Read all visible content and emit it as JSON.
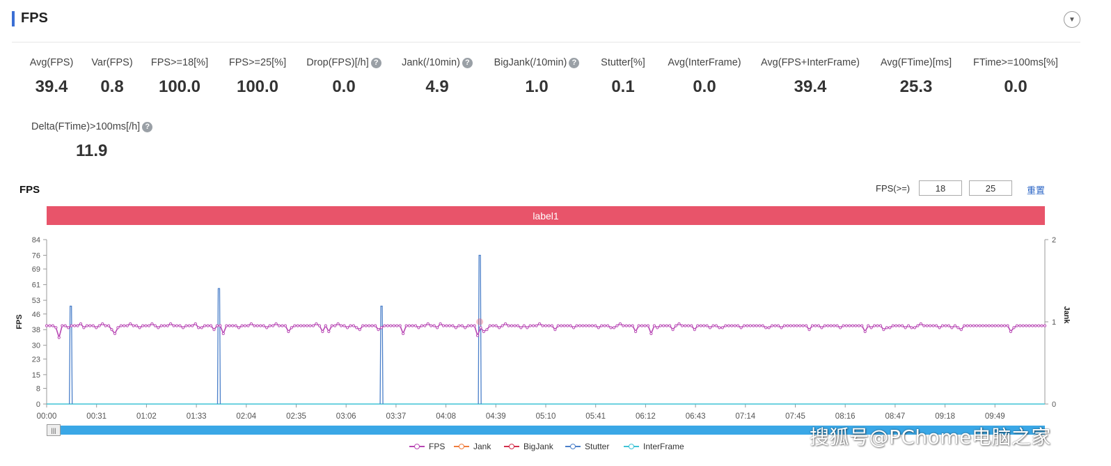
{
  "header": {
    "title": "FPS"
  },
  "metrics_row1": [
    {
      "label": "Avg(FPS)",
      "value": "39.4",
      "help": false
    },
    {
      "label": "Var(FPS)",
      "value": "0.8",
      "help": false
    },
    {
      "label": "FPS>=18[%]",
      "value": "100.0",
      "help": false
    },
    {
      "label": "FPS>=25[%]",
      "value": "100.0",
      "help": false
    },
    {
      "label": "Drop(FPS)[/h]",
      "value": "0.0",
      "help": true
    },
    {
      "label": "Jank(/10min)",
      "value": "4.9",
      "help": true
    },
    {
      "label": "BigJank(/10min)",
      "value": "1.0",
      "help": true
    },
    {
      "label": "Stutter[%]",
      "value": "0.1",
      "help": false
    },
    {
      "label": "Avg(InterFrame)",
      "value": "0.0",
      "help": false
    },
    {
      "label": "Avg(FPS+InterFrame)",
      "value": "39.4",
      "help": false
    },
    {
      "label": "Avg(FTime)[ms]",
      "value": "25.3",
      "help": false
    },
    {
      "label": "FTime>=100ms[%]",
      "value": "0.0",
      "help": false
    }
  ],
  "metrics_row2": [
    {
      "label": "Delta(FTime)>100ms[/h]",
      "value": "11.9",
      "help": true
    }
  ],
  "help_glyph": "?",
  "chart_controls": {
    "title": "FPS",
    "fps_label": "FPS(>=)",
    "threshold_low": "18",
    "threshold_high": "25",
    "reset_label": "重置",
    "band_label": "label1",
    "collapse_glyph": "▼",
    "slider_glyph": "|||"
  },
  "legend": [
    {
      "name": "FPS",
      "color": "#b847b4"
    },
    {
      "name": "Jank",
      "color": "#f07c3c"
    },
    {
      "name": "BigJank",
      "color": "#d32f4b"
    },
    {
      "name": "Stutter",
      "color": "#4a7fc9"
    },
    {
      "name": "InterFrame",
      "color": "#3fc3d6"
    }
  ],
  "watermark": "搜狐号@PChome电脑之家",
  "chart_data": {
    "type": "line",
    "title": "FPS",
    "ylabel": "FPS",
    "y2label": "Jank",
    "ylim": [
      0,
      84
    ],
    "y2lim": [
      0,
      2
    ],
    "yticks": [
      0,
      8,
      15,
      23,
      30,
      38,
      46,
      53,
      61,
      69,
      76,
      84
    ],
    "y2ticks": [
      0,
      1,
      2
    ],
    "xlim": [
      0,
      620
    ],
    "xticks": [
      {
        "t": 0,
        "label": "00:00"
      },
      {
        "t": 31,
        "label": "00:31"
      },
      {
        "t": 62,
        "label": "01:02"
      },
      {
        "t": 93,
        "label": "01:33"
      },
      {
        "t": 124,
        "label": "02:04"
      },
      {
        "t": 155,
        "label": "02:35"
      },
      {
        "t": 186,
        "label": "03:06"
      },
      {
        "t": 217,
        "label": "03:37"
      },
      {
        "t": 248,
        "label": "04:08"
      },
      {
        "t": 279,
        "label": "04:39"
      },
      {
        "t": 310,
        "label": "05:10"
      },
      {
        "t": 341,
        "label": "05:41"
      },
      {
        "t": 372,
        "label": "06:12"
      },
      {
        "t": 403,
        "label": "06:43"
      },
      {
        "t": 434,
        "label": "07:14"
      },
      {
        "t": 465,
        "label": "07:45"
      },
      {
        "t": 496,
        "label": "08:16"
      },
      {
        "t": 527,
        "label": "08:47"
      },
      {
        "t": 558,
        "label": "09:18"
      },
      {
        "t": 589,
        "label": "09:49"
      }
    ],
    "series": [
      {
        "name": "FPS",
        "note": "samples every 2s, values around 38-41 with dips at jank moments",
        "values": [
          40,
          40,
          40,
          39,
          34,
          40,
          40,
          39,
          40,
          40,
          40,
          41,
          39,
          40,
          40,
          40,
          39,
          40,
          41,
          40,
          40,
          38,
          36,
          39,
          40,
          40,
          40,
          41,
          40,
          40,
          39,
          40,
          40,
          40,
          41,
          40,
          39,
          40,
          40,
          40,
          41,
          40,
          40,
          40,
          39,
          40,
          40,
          40,
          41,
          39,
          39,
          40,
          40,
          40,
          38,
          40,
          40,
          36,
          40,
          40,
          40,
          40,
          39,
          40,
          40,
          40,
          41,
          40,
          40,
          40,
          40,
          39,
          40,
          40,
          41,
          40,
          40,
          40,
          37,
          39,
          40,
          40,
          40,
          40,
          40,
          40,
          40,
          41,
          40,
          37,
          40,
          37,
          40,
          40,
          41,
          40,
          40,
          39,
          40,
          40,
          39,
          38,
          40,
          40,
          40,
          40,
          40,
          38,
          39,
          40,
          40,
          40,
          40,
          40,
          40,
          36,
          40,
          40,
          40,
          40,
          39,
          40,
          40,
          41,
          40,
          40,
          39,
          41,
          40,
          40,
          40,
          40,
          39,
          40,
          40,
          39,
          40,
          40,
          40,
          35,
          39,
          37,
          38,
          40,
          40,
          40,
          39,
          40,
          41,
          40,
          40,
          40,
          40,
          39,
          40,
          39,
          40,
          40,
          40,
          41,
          40,
          40,
          40,
          40,
          38,
          40,
          40,
          40,
          40,
          40,
          39,
          40,
          40,
          40,
          40,
          40,
          40,
          40,
          39,
          40,
          40,
          40,
          39,
          39,
          40,
          41,
          40,
          40,
          40,
          40,
          37,
          40,
          40,
          40,
          40,
          36,
          40,
          39,
          40,
          40,
          40,
          40,
          38,
          40,
          41,
          40,
          40,
          40,
          40,
          38,
          40,
          40,
          40,
          40,
          39,
          40,
          40,
          39,
          39,
          40,
          40,
          40,
          40,
          40,
          39,
          40,
          40,
          40,
          40,
          40,
          40,
          40,
          39,
          39,
          40,
          40,
          40,
          39,
          40,
          40,
          40,
          40,
          40,
          40,
          40,
          40,
          38,
          40,
          40,
          40,
          39,
          40,
          40,
          40,
          40,
          40,
          39,
          40,
          40,
          40,
          40,
          40,
          40,
          40,
          37,
          40,
          39,
          40,
          40,
          40,
          38,
          39,
          39,
          40,
          40,
          40,
          40,
          39,
          40,
          39,
          39,
          40,
          41,
          40,
          40,
          40,
          40,
          40,
          39,
          40,
          40,
          40,
          39,
          40,
          39,
          38,
          40,
          40,
          40,
          40,
          40,
          40,
          40,
          40,
          40,
          40,
          40,
          40,
          40,
          40,
          40,
          37,
          39,
          40,
          40,
          40,
          40,
          40,
          40,
          40,
          40,
          40,
          40
        ]
      },
      {
        "name": "Stutter",
        "note": "spikes to frame-time peaks, else baseline 0",
        "spikes": [
          {
            "t": 15,
            "value": 50
          },
          {
            "t": 107,
            "value": 59
          },
          {
            "t": 208,
            "value": 50
          },
          {
            "t": 269,
            "value": 76
          }
        ]
      },
      {
        "name": "Jank",
        "y_axis": "right",
        "points": [
          {
            "t": 269,
            "value": 1
          }
        ]
      },
      {
        "name": "BigJank",
        "y_axis": "right",
        "points": []
      },
      {
        "name": "InterFrame",
        "values_constant": 0
      }
    ]
  }
}
